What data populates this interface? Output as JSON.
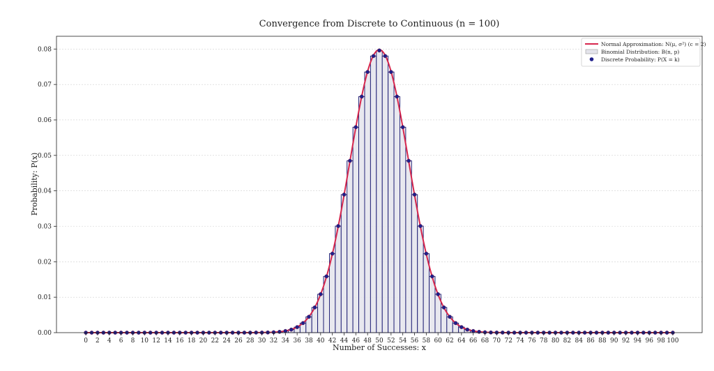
{
  "chart_data": {
    "type": "bar",
    "title": "Convergence from Discrete to Continuous (n = 100)",
    "xlabel": "Number of Successes: x",
    "ylabel": "Probability: P(x)",
    "n": 100,
    "p": 0.5,
    "xlim": [
      -5,
      105
    ],
    "ylim": [
      0,
      0.0836
    ],
    "x_ticks": [
      0,
      2,
      4,
      6,
      8,
      10,
      12,
      14,
      16,
      18,
      20,
      22,
      24,
      26,
      28,
      30,
      32,
      34,
      36,
      38,
      40,
      42,
      44,
      46,
      48,
      50,
      52,
      54,
      56,
      58,
      60,
      62,
      64,
      66,
      68,
      70,
      72,
      74,
      76,
      78,
      80,
      82,
      84,
      86,
      88,
      90,
      92,
      94,
      96,
      98,
      100
    ],
    "y_ticks": [
      0.0,
      0.01,
      0.02,
      0.03,
      0.04,
      0.05,
      0.06,
      0.07,
      0.08
    ],
    "y_tick_labels": [
      "0.00",
      "0.01",
      "0.02",
      "0.03",
      "0.04",
      "0.05",
      "0.06",
      "0.07",
      "0.08"
    ],
    "grid": "horizontal dotted",
    "legend_position": "top-right",
    "series": [
      {
        "name": "Normal Approximation: N(μ, σ²) (c = 2)",
        "type": "line",
        "mean": 50,
        "std": 5,
        "color": "#d6264d"
      },
      {
        "name": "Binomial Distribution: B(n, p)",
        "type": "bar",
        "color": "#e4e4ec",
        "edge_color": "#14146e"
      },
      {
        "name": "Discrete Probability: P(X = k)",
        "type": "scatter",
        "color": "#1f1f8a"
      }
    ],
    "x": [
      0,
      1,
      2,
      3,
      4,
      5,
      6,
      7,
      8,
      9,
      10,
      11,
      12,
      13,
      14,
      15,
      16,
      17,
      18,
      19,
      20,
      21,
      22,
      23,
      24,
      25,
      26,
      27,
      28,
      29,
      30,
      31,
      32,
      33,
      34,
      35,
      36,
      37,
      38,
      39,
      40,
      41,
      42,
      43,
      44,
      45,
      46,
      47,
      48,
      49,
      50,
      51,
      52,
      53,
      54,
      55,
      56,
      57,
      58,
      59,
      60,
      61,
      62,
      63,
      64,
      65,
      66,
      67,
      68,
      69,
      70,
      71,
      72,
      73,
      74,
      75,
      76,
      77,
      78,
      79,
      80,
      81,
      82,
      83,
      84,
      85,
      86,
      87,
      88,
      89,
      90,
      91,
      92,
      93,
      94,
      95,
      96,
      97,
      98,
      99,
      100
    ],
    "values": [
      0,
      0,
      0,
      0,
      0,
      0,
      0,
      0,
      0,
      0,
      0,
      0,
      0,
      0,
      0,
      0,
      0,
      0,
      0,
      0,
      0,
      0,
      0,
      0,
      0,
      0,
      0,
      0,
      0,
      2e-05,
      2e-05,
      5e-05,
      0.00011,
      0.00023,
      0.00046,
      0.00086,
      0.00156,
      0.0027,
      0.00447,
      0.00711,
      0.01084,
      0.01587,
      0.02229,
      0.03007,
      0.03895,
      0.04847,
      0.05796,
      0.06659,
      0.07353,
      0.07803,
      0.07959,
      0.07803,
      0.07353,
      0.06659,
      0.05796,
      0.04847,
      0.03895,
      0.03007,
      0.02229,
      0.01587,
      0.01084,
      0.00711,
      0.00447,
      0.0027,
      0.00156,
      0.00086,
      0.00046,
      0.00023,
      0.00011,
      5e-05,
      2e-05,
      2e-05,
      0,
      0,
      0,
      0,
      0,
      0,
      0,
      0,
      0,
      0,
      0,
      0,
      0,
      0,
      0,
      0,
      0,
      0,
      0,
      0,
      0,
      0,
      0,
      0,
      0,
      0,
      0,
      0,
      0
    ]
  }
}
